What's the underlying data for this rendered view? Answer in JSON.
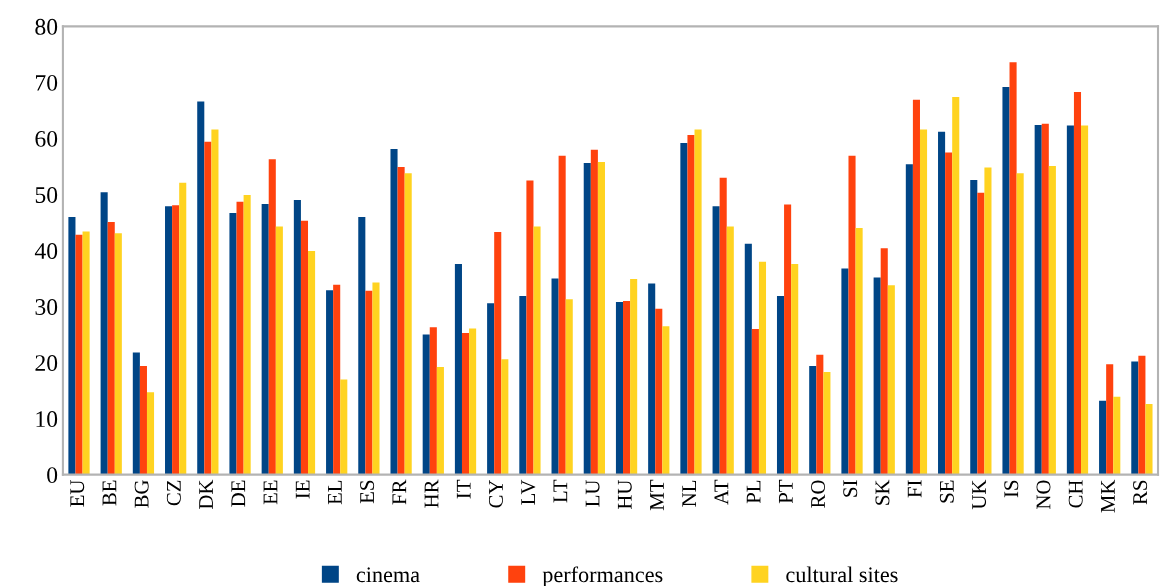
{
  "chart_data": {
    "type": "bar",
    "categories": [
      "EU",
      "BE",
      "BG",
      "CZ",
      "DK",
      "DE",
      "EE",
      "IE",
      "EL",
      "ES",
      "FR",
      "HR",
      "IT",
      "CY",
      "LV",
      "LT",
      "LU",
      "HU",
      "MT",
      "NL",
      "AT",
      "PL",
      "PT",
      "RO",
      "SI",
      "SK",
      "FI",
      "SE",
      "UK",
      "IS",
      "NO",
      "CH",
      "MK",
      "RS"
    ],
    "series": [
      {
        "name": "cinema",
        "color": "#004586",
        "values": [
          46.0,
          50.4,
          21.8,
          47.9,
          66.6,
          46.7,
          48.3,
          49.0,
          32.9,
          46.0,
          58.1,
          25.0,
          37.6,
          30.6,
          31.9,
          35.0,
          55.6,
          30.8,
          34.1,
          59.2,
          47.9,
          41.2,
          31.9,
          19.4,
          36.8,
          35.2,
          55.4,
          61.2,
          52.6,
          69.2,
          62.4,
          62.3,
          13.2,
          20.2
        ]
      },
      {
        "name": "performances",
        "color": "#ff420e",
        "values": [
          42.8,
          45.1,
          19.4,
          48.1,
          59.4,
          48.7,
          56.3,
          45.3,
          33.9,
          32.8,
          54.9,
          26.3,
          25.3,
          43.3,
          52.5,
          56.9,
          58.0,
          31.0,
          29.6,
          60.6,
          53.0,
          26.0,
          48.2,
          21.4,
          56.9,
          40.4,
          66.9,
          57.5,
          50.3,
          73.6,
          62.6,
          68.3,
          19.7,
          21.2
        ]
      },
      {
        "name": "cultural sites",
        "color": "#ffd320",
        "values": [
          43.4,
          43.1,
          14.7,
          52.1,
          61.6,
          49.9,
          44.3,
          39.9,
          17.0,
          34.3,
          53.8,
          19.2,
          26.1,
          20.6,
          44.3,
          31.3,
          55.8,
          34.9,
          26.5,
          61.6,
          44.3,
          38.0,
          37.6,
          18.3,
          44.0,
          33.8,
          61.6,
          67.4,
          54.8,
          53.8,
          55.1,
          62.3,
          13.9,
          12.6
        ]
      }
    ],
    "ylim": [
      0,
      80
    ],
    "yticks": [
      0,
      10,
      20,
      30,
      40,
      50,
      60,
      70,
      80
    ],
    "grid": false,
    "legend": "bottom"
  }
}
